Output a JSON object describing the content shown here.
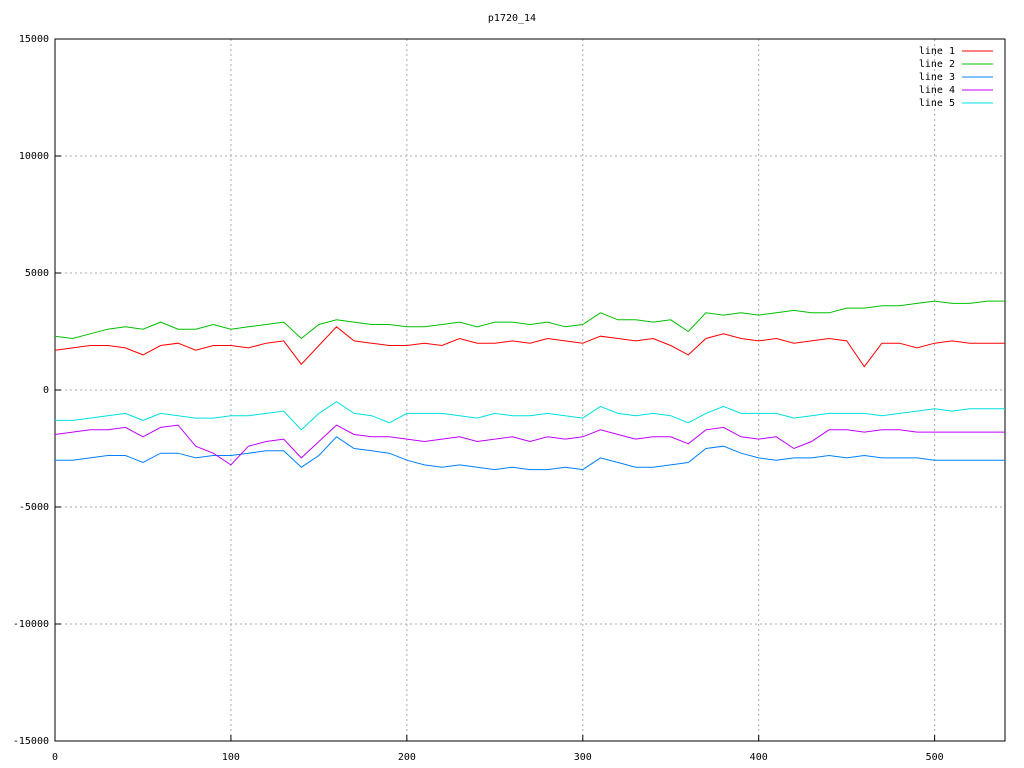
{
  "chart_data": {
    "type": "line",
    "title": "p1720_14",
    "x": [
      0,
      10,
      20,
      30,
      40,
      50,
      60,
      70,
      80,
      90,
      100,
      110,
      120,
      130,
      140,
      150,
      160,
      170,
      180,
      190,
      200,
      210,
      220,
      230,
      240,
      250,
      260,
      270,
      280,
      290,
      300,
      310,
      320,
      330,
      340,
      350,
      360,
      370,
      380,
      390,
      400,
      410,
      420,
      430,
      440,
      450,
      460,
      470,
      480,
      490,
      500,
      510,
      520,
      530,
      540
    ],
    "series": [
      {
        "name": "line 1",
        "color": "#ff0000",
        "values": [
          1700,
          1800,
          1900,
          1900,
          1800,
          1500,
          1900,
          2000,
          1700,
          1900,
          1900,
          1800,
          2000,
          2100,
          1100,
          1900,
          2700,
          2100,
          2000,
          1900,
          1900,
          2000,
          1900,
          2200,
          2000,
          2000,
          2100,
          2000,
          2200,
          2100,
          2000,
          2300,
          2200,
          2100,
          2200,
          1900,
          1500,
          2200,
          2400,
          2200,
          2100,
          2200,
          2000,
          2100,
          2200,
          2100,
          1000,
          2000,
          2000,
          1800,
          2000,
          2100,
          2000,
          2000,
          2000
        ]
      },
      {
        "name": "line 2",
        "color": "#00c000",
        "values": [
          2300,
          2200,
          2400,
          2600,
          2700,
          2600,
          2900,
          2600,
          2600,
          2800,
          2600,
          2700,
          2800,
          2900,
          2200,
          2800,
          3000,
          2900,
          2800,
          2800,
          2700,
          2700,
          2800,
          2900,
          2700,
          2900,
          2900,
          2800,
          2900,
          2700,
          2800,
          3300,
          3000,
          3000,
          2900,
          3000,
          2500,
          3300,
          3200,
          3300,
          3200,
          3300,
          3400,
          3300,
          3300,
          3500,
          3500,
          3600,
          3600,
          3700,
          3800,
          3700,
          3700,
          3800,
          3800
        ]
      },
      {
        "name": "line 3",
        "color": "#0080ff",
        "values": [
          -3000,
          -3000,
          -2900,
          -2800,
          -2800,
          -3100,
          -2700,
          -2700,
          -2900,
          -2800,
          -2800,
          -2700,
          -2600,
          -2600,
          -3300,
          -2800,
          -2000,
          -2500,
          -2600,
          -2700,
          -3000,
          -3200,
          -3300,
          -3200,
          -3300,
          -3400,
          -3300,
          -3400,
          -3400,
          -3300,
          -3400,
          -2900,
          -3100,
          -3300,
          -3300,
          -3200,
          -3100,
          -2500,
          -2400,
          -2700,
          -2900,
          -3000,
          -2900,
          -2900,
          -2800,
          -2900,
          -2800,
          -2900,
          -2900,
          -2900,
          -3000,
          -3000,
          -3000,
          -3000,
          -3000
        ]
      },
      {
        "name": "line 4",
        "color": "#c000ff",
        "values": [
          -1900,
          -1800,
          -1700,
          -1700,
          -1600,
          -2000,
          -1600,
          -1500,
          -2400,
          -2700,
          -3200,
          -2400,
          -2200,
          -2100,
          -2900,
          -2200,
          -1500,
          -1900,
          -2000,
          -2000,
          -2100,
          -2200,
          -2100,
          -2000,
          -2200,
          -2100,
          -2000,
          -2200,
          -2000,
          -2100,
          -2000,
          -1700,
          -1900,
          -2100,
          -2000,
          -2000,
          -2300,
          -1700,
          -1600,
          -2000,
          -2100,
          -2000,
          -2500,
          -2200,
          -1700,
          -1700,
          -1800,
          -1700,
          -1700,
          -1800,
          -1800,
          -1800,
          -1800,
          -1800,
          -1800
        ]
      },
      {
        "name": "line 5",
        "color": "#00e0e0",
        "values": [
          -1300,
          -1300,
          -1200,
          -1100,
          -1000,
          -1300,
          -1000,
          -1100,
          -1200,
          -1200,
          -1100,
          -1100,
          -1000,
          -900,
          -1700,
          -1000,
          -500,
          -1000,
          -1100,
          -1400,
          -1000,
          -1000,
          -1000,
          -1100,
          -1200,
          -1000,
          -1100,
          -1100,
          -1000,
          -1100,
          -1200,
          -700,
          -1000,
          -1100,
          -1000,
          -1100,
          -1400,
          -1000,
          -700,
          -1000,
          -1000,
          -1000,
          -1200,
          -1100,
          -1000,
          -1000,
          -1000,
          -1100,
          -1000,
          -900,
          -800,
          -900,
          -800,
          -800,
          -800
        ]
      }
    ],
    "xlim": [
      0,
      540
    ],
    "xticks": [
      0,
      100,
      200,
      300,
      400,
      500
    ],
    "ylim": [
      -15000,
      15000
    ],
    "yticks": [
      -15000,
      -10000,
      -5000,
      0,
      5000,
      10000,
      15000
    ],
    "grid": true,
    "legend": "top-right"
  }
}
